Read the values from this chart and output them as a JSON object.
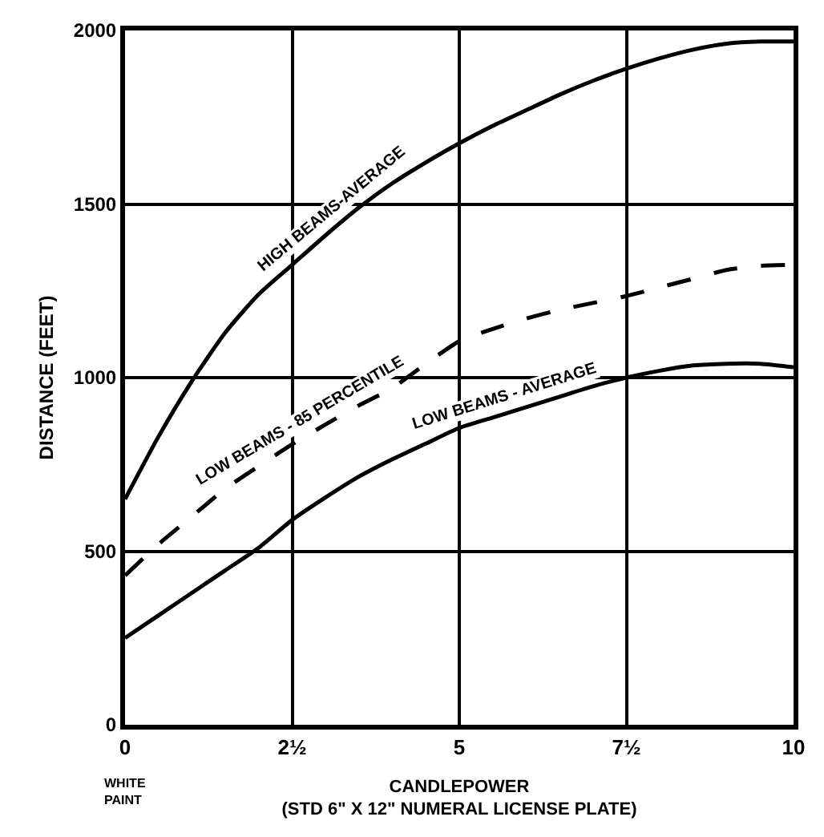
{
  "chart_data": {
    "type": "line",
    "xlabel": "CANDLEPOWER\n(STD 6\" X 12\" NUMERAL LICENSE PLATE)",
    "ylabel": "DISTANCE (FEET)",
    "x": [
      0,
      0.5,
      1,
      1.5,
      2,
      2.5,
      3,
      3.5,
      4,
      4.5,
      5,
      5.5,
      6,
      6.5,
      7,
      7.5,
      8,
      8.5,
      9,
      9.5,
      10
    ],
    "series": [
      {
        "name": "HIGH BEAMS-AVERAGE",
        "color": "#000000",
        "line_style": "solid",
        "values": [
          650,
          830,
          990,
          1130,
          1240,
          1325,
          1410,
          1490,
          1560,
          1620,
          1675,
          1725,
          1770,
          1815,
          1855,
          1890,
          1920,
          1945,
          1962,
          1968,
          1968
        ]
      },
      {
        "name": "LOW BEAMS - 85 PERCENTILE",
        "color": "#000000",
        "line_style": "dashed",
        "values": [
          430,
          520,
          600,
          680,
          745,
          808,
          865,
          920,
          970,
          1040,
          1105,
          1140,
          1170,
          1195,
          1215,
          1235,
          1260,
          1285,
          1310,
          1322,
          1325
        ]
      },
      {
        "name": "LOW BEAMS - AVERAGE",
        "color": "#000000",
        "line_style": "solid",
        "values": [
          250,
          315,
          380,
          445,
          510,
          590,
          655,
          715,
          765,
          810,
          855,
          885,
          915,
          945,
          975,
          1000,
          1020,
          1035,
          1040,
          1040,
          1030
        ]
      }
    ],
    "xlim": [
      0,
      10
    ],
    "ylim": [
      0,
      2000
    ],
    "xticks": [
      0,
      {
        "value": 2.5,
        "label": "2½"
      },
      5,
      {
        "value": 7.5,
        "label": "7½"
      },
      10
    ],
    "yticks": [
      0,
      500,
      1000,
      1500,
      2000
    ],
    "grid": true,
    "legend": false,
    "marker": "none",
    "annotations": [
      "WHITE\nPAINT"
    ]
  }
}
